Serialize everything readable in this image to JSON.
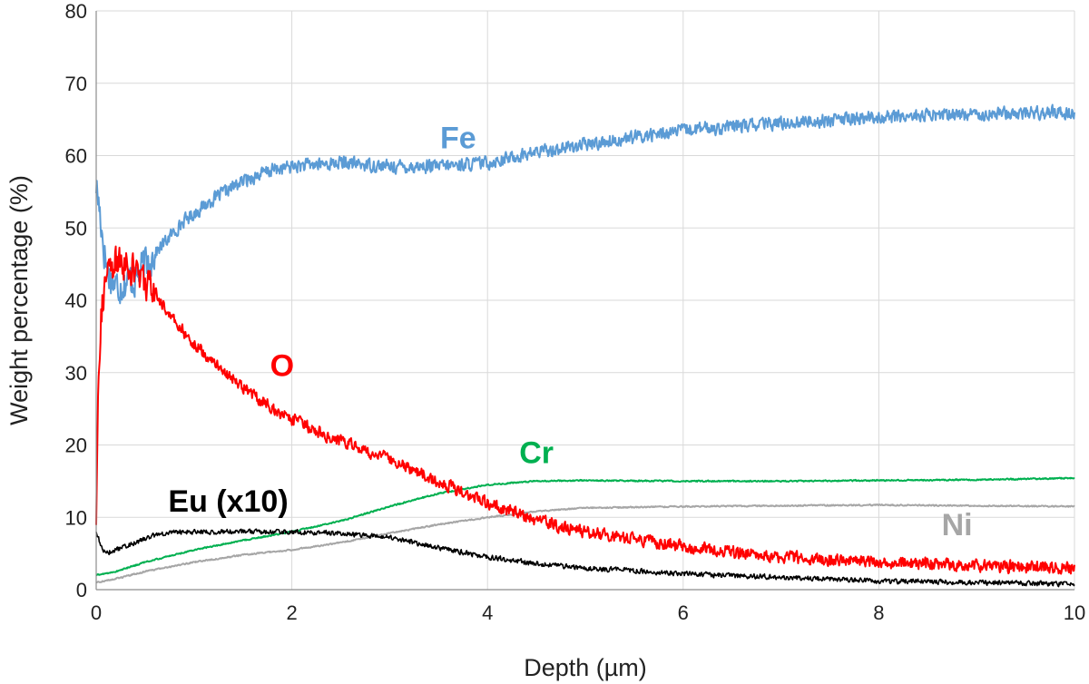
{
  "chart_data": {
    "type": "line",
    "title": "",
    "xlabel": "Depth (µm)",
    "ylabel": "Weight percentage (%)",
    "xlim": [
      0,
      10
    ],
    "ylim": [
      0,
      80
    ],
    "x_ticks": [
      "0",
      "2",
      "4",
      "6",
      "8",
      "10"
    ],
    "y_ticks": [
      "0",
      "10",
      "20",
      "30",
      "40",
      "50",
      "60",
      "70",
      "80"
    ],
    "grid": true,
    "legend": "inline labels",
    "series": [
      {
        "name": "Fe",
        "color": "#5b9bd5",
        "noise": 1.2,
        "points": [
          [
            0.0,
            56
          ],
          [
            0.04,
            52
          ],
          [
            0.08,
            47
          ],
          [
            0.12,
            44
          ],
          [
            0.2,
            42
          ],
          [
            0.3,
            42.5
          ],
          [
            0.4,
            43
          ],
          [
            0.5,
            45
          ],
          [
            0.7,
            48
          ],
          [
            0.9,
            51
          ],
          [
            1.2,
            54
          ],
          [
            1.5,
            56.5
          ],
          [
            1.8,
            58
          ],
          [
            2.0,
            58.5
          ],
          [
            2.5,
            59
          ],
          [
            3.0,
            58.5
          ],
          [
            3.5,
            58.5
          ],
          [
            4.0,
            59
          ],
          [
            4.5,
            60.5
          ],
          [
            5.0,
            61.5
          ],
          [
            6.0,
            63.5
          ],
          [
            7.0,
            64.5
          ],
          [
            8.0,
            65.3
          ],
          [
            9.0,
            65.8
          ],
          [
            10.0,
            66
          ]
        ]
      },
      {
        "name": "O",
        "color": "#ff0000",
        "noise": 1.1,
        "points": [
          [
            0.0,
            9
          ],
          [
            0.02,
            28
          ],
          [
            0.05,
            38
          ],
          [
            0.1,
            43
          ],
          [
            0.2,
            45
          ],
          [
            0.3,
            45
          ],
          [
            0.4,
            44
          ],
          [
            0.6,
            41
          ],
          [
            0.8,
            37
          ],
          [
            1.0,
            34
          ],
          [
            1.2,
            31.5
          ],
          [
            1.5,
            28
          ],
          [
            1.8,
            25
          ],
          [
            2.0,
            23.5
          ],
          [
            2.5,
            20.5
          ],
          [
            3.0,
            18
          ],
          [
            3.5,
            15
          ],
          [
            4.0,
            12
          ],
          [
            4.5,
            9.5
          ],
          [
            5.0,
            8
          ],
          [
            6.0,
            6
          ],
          [
            7.0,
            4.5
          ],
          [
            8.0,
            3.8
          ],
          [
            9.0,
            3.3
          ],
          [
            10.0,
            3
          ]
        ]
      },
      {
        "name": "Cr",
        "color": "#00b050",
        "noise": 0.12,
        "points": [
          [
            0.0,
            2
          ],
          [
            0.2,
            2.5
          ],
          [
            0.5,
            3.8
          ],
          [
            1.0,
            5.5
          ],
          [
            1.5,
            6.8
          ],
          [
            2.0,
            8
          ],
          [
            2.5,
            9.5
          ],
          [
            3.0,
            11.5
          ],
          [
            3.5,
            13.3
          ],
          [
            4.0,
            14.5
          ],
          [
            4.5,
            15
          ],
          [
            5.0,
            15.1
          ],
          [
            6.0,
            15
          ],
          [
            7.0,
            15
          ],
          [
            8.0,
            15.1
          ],
          [
            9.0,
            15.2
          ],
          [
            10.0,
            15.4
          ]
        ]
      },
      {
        "name": "Ni",
        "color": "#a6a6a6",
        "noise": 0.12,
        "points": [
          [
            0.0,
            1
          ],
          [
            0.2,
            1.5
          ],
          [
            0.5,
            2.5
          ],
          [
            1.0,
            3.8
          ],
          [
            1.5,
            4.8
          ],
          [
            2.0,
            5.5
          ],
          [
            2.5,
            6.5
          ],
          [
            3.0,
            7.8
          ],
          [
            3.5,
            9
          ],
          [
            4.0,
            10
          ],
          [
            4.5,
            10.8
          ],
          [
            5.0,
            11.3
          ],
          [
            6.0,
            11.5
          ],
          [
            7.0,
            11.6
          ],
          [
            8.0,
            11.7
          ],
          [
            9.0,
            11.6
          ],
          [
            10.0,
            11.5
          ]
        ]
      },
      {
        "name": "Eu (x10)",
        "color": "#000000",
        "noise": 0.45,
        "points": [
          [
            0.0,
            8
          ],
          [
            0.05,
            6
          ],
          [
            0.1,
            5
          ],
          [
            0.2,
            5.5
          ],
          [
            0.4,
            6.5
          ],
          [
            0.6,
            7.5
          ],
          [
            0.8,
            8
          ],
          [
            1.0,
            8
          ],
          [
            1.5,
            8
          ],
          [
            2.0,
            8
          ],
          [
            2.5,
            7.8
          ],
          [
            3.0,
            7.2
          ],
          [
            3.5,
            5.8
          ],
          [
            4.0,
            4.5
          ],
          [
            4.5,
            3.6
          ],
          [
            5.0,
            3
          ],
          [
            6.0,
            2.2
          ],
          [
            7.0,
            1.7
          ],
          [
            8.0,
            1.2
          ],
          [
            9.0,
            1
          ],
          [
            10.0,
            0.8
          ]
        ]
      }
    ],
    "annotations": [
      {
        "text": "Fe",
        "x": 3.7,
        "y": 61,
        "color": "#5b9bd5"
      },
      {
        "text": "O",
        "x": 1.9,
        "y": 29.5,
        "color": "#ff0000"
      },
      {
        "text": "Cr",
        "x": 4.5,
        "y": 17.5,
        "color": "#00b050"
      },
      {
        "text": "Ni",
        "x": 8.8,
        "y": 7.5,
        "color": "#a6a6a6"
      },
      {
        "text": "Eu (x10)",
        "x": 1.35,
        "y": 10.8,
        "color": "#000000"
      }
    ]
  }
}
